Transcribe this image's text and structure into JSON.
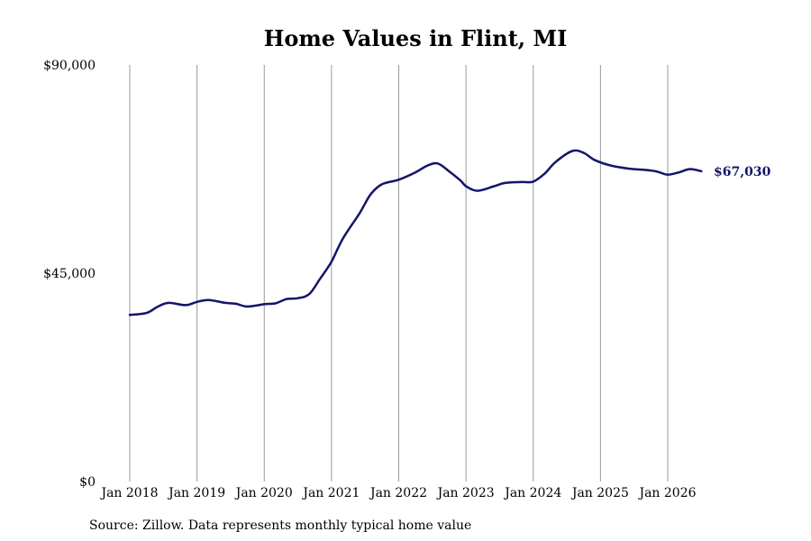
{
  "chart_data": {
    "type": "line",
    "title": "Home Values in Flint, MI",
    "xlabel": "",
    "ylabel": "",
    "source": "Source: Zillow. Data represents monthly typical home value",
    "y_ticks": [
      {
        "value": 0,
        "label": "$0"
      },
      {
        "value": 45000,
        "label": "$45,000"
      },
      {
        "value": 90000,
        "label": "$90,000"
      }
    ],
    "ylim": [
      0,
      90000
    ],
    "x_ticks": [
      {
        "value": 2018.0,
        "label": "Jan 2018"
      },
      {
        "value": 2019.0,
        "label": "Jan 2019"
      },
      {
        "value": 2020.0,
        "label": "Jan 2020"
      },
      {
        "value": 2021.0,
        "label": "Jan 2021"
      },
      {
        "value": 2022.0,
        "label": "Jan 2022"
      },
      {
        "value": 2023.0,
        "label": "Jan 2023"
      },
      {
        "value": 2024.0,
        "label": "Jan 2024"
      },
      {
        "value": 2025.0,
        "label": "Jan 2025"
      },
      {
        "value": 2026.0,
        "label": "Jan 2026"
      }
    ],
    "grid": "vertical",
    "line_color": "#14146b",
    "end_label": "$67,030",
    "series": [
      {
        "values": [
          [
            2018.0,
            36000
          ],
          [
            2018.25,
            36400
          ],
          [
            2018.42,
            37800
          ],
          [
            2018.58,
            38600
          ],
          [
            2018.83,
            38100
          ],
          [
            2019.0,
            38800
          ],
          [
            2019.17,
            39200
          ],
          [
            2019.42,
            38600
          ],
          [
            2019.58,
            38400
          ],
          [
            2019.75,
            37800
          ],
          [
            2020.0,
            38300
          ],
          [
            2020.17,
            38500
          ],
          [
            2020.33,
            39400
          ],
          [
            2020.5,
            39600
          ],
          [
            2020.67,
            40500
          ],
          [
            2020.83,
            43800
          ],
          [
            2021.0,
            47500
          ],
          [
            2021.17,
            52500
          ],
          [
            2021.42,
            58000
          ],
          [
            2021.58,
            62000
          ],
          [
            2021.75,
            64200
          ],
          [
            2022.0,
            65200
          ],
          [
            2022.25,
            66800
          ],
          [
            2022.42,
            68200
          ],
          [
            2022.58,
            68700
          ],
          [
            2022.75,
            67000
          ],
          [
            2022.92,
            65000
          ],
          [
            2023.0,
            63800
          ],
          [
            2023.17,
            62800
          ],
          [
            2023.42,
            63800
          ],
          [
            2023.58,
            64500
          ],
          [
            2023.83,
            64700
          ],
          [
            2024.0,
            64800
          ],
          [
            2024.17,
            66500
          ],
          [
            2024.33,
            69000
          ],
          [
            2024.58,
            71400
          ],
          [
            2024.75,
            71000
          ],
          [
            2024.92,
            69400
          ],
          [
            2025.17,
            68200
          ],
          [
            2025.42,
            67600
          ],
          [
            2025.67,
            67300
          ],
          [
            2025.83,
            67000
          ],
          [
            2026.0,
            66300
          ],
          [
            2026.17,
            66800
          ],
          [
            2026.33,
            67500
          ],
          [
            2026.5,
            67030
          ]
        ]
      }
    ]
  }
}
